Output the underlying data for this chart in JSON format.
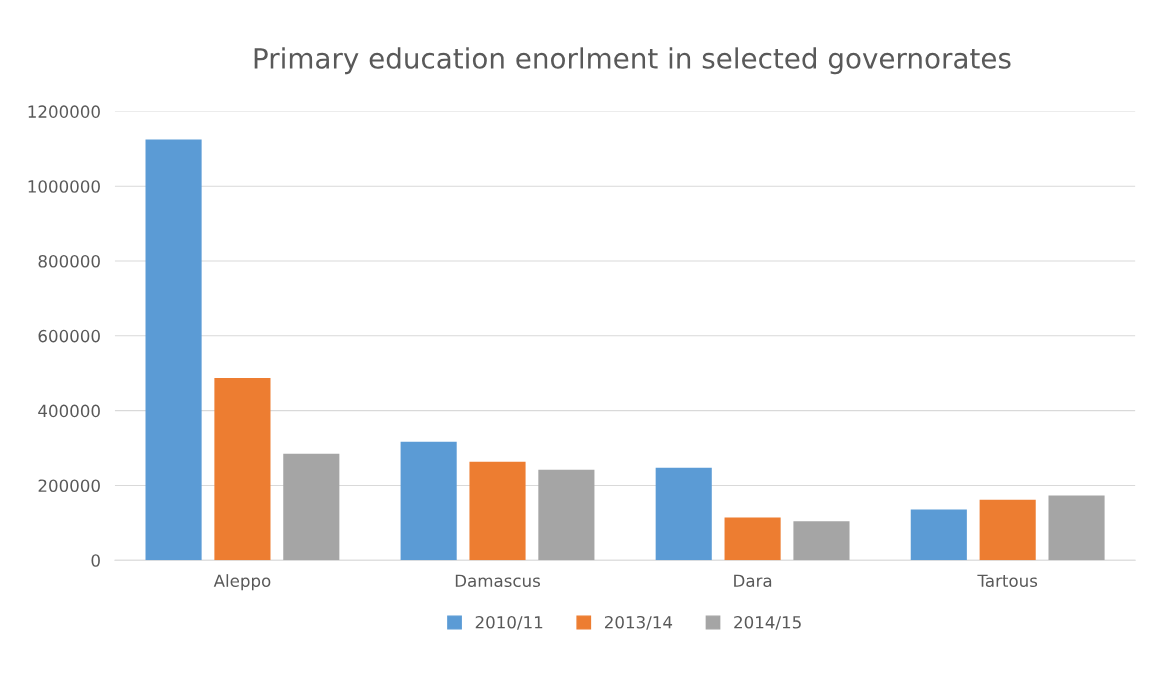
{
  "chart_data": {
    "type": "bar",
    "title": "Primary education enorlment in selected governorates",
    "categories": [
      "Aleppo",
      "Damascus",
      "Dara",
      "Tartous"
    ],
    "series": [
      {
        "name": "2010/11",
        "color": "#5b9bd5",
        "values": [
          1125000,
          317000,
          247000,
          136000
        ]
      },
      {
        "name": "2013/14",
        "color": "#ed7d31",
        "values": [
          487000,
          263000,
          114000,
          162000
        ]
      },
      {
        "name": "2014/15",
        "color": "#a5a5a5",
        "values": [
          285000,
          242000,
          104000,
          173000
        ]
      }
    ],
    "ylim": [
      0,
      1200000
    ],
    "yticks": [
      0,
      200000,
      400000,
      600000,
      800000,
      1000000,
      1200000
    ],
    "grid": "y",
    "legend": "bottom"
  }
}
